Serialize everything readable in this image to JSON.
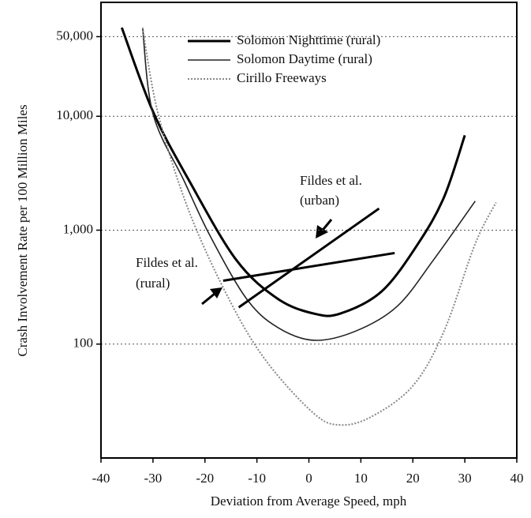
{
  "chart_data": {
    "type": "line",
    "xlabel": "Deviation from Average Speed, mph",
    "ylabel": "Crash Involvement Rate per 100 Million Miles",
    "xlim": [
      -40,
      40
    ],
    "xticks": [
      -40,
      -30,
      -20,
      -10,
      0,
      10,
      20,
      30,
      40
    ],
    "ylim": [
      10,
      100000
    ],
    "yticks": [
      100,
      {
        "value": 1000,
        "label": "1,000"
      },
      {
        "value": 10000,
        "label": "10,000"
      },
      {
        "value": 50000,
        "label": "50,000"
      }
    ],
    "log_y": true,
    "grid": true,
    "legend": "upper right",
    "series": [
      {
        "name": "Solomon Nighttime (rural)",
        "color": "#000000",
        "style": "thick",
        "x": [
          -36,
          -30,
          -23,
          -14,
          -6,
          1,
          6,
          14,
          21,
          26,
          30
        ],
        "values": [
          60000,
          11000,
          2700,
          550,
          250,
          185,
          185,
          290,
          760,
          1950,
          6800
        ]
      },
      {
        "name": "Solomon Daytime (rural)",
        "color": "#222222",
        "style": "thin",
        "x": [
          -32,
          -30,
          -24,
          -19,
          -12,
          -6,
          1,
          9,
          17,
          24,
          32
        ],
        "values": [
          60000,
          10500,
          2700,
          890,
          250,
          140,
          108,
          130,
          215,
          550,
          1800
        ]
      },
      {
        "name": "Cirillo Freeways",
        "color": "#888888",
        "style": "dotted",
        "x": [
          -32,
          -29,
          -23,
          -15,
          -8,
          1,
          6,
          12,
          20,
          26,
          32,
          36
        ],
        "values": [
          60000,
          10500,
          1440,
          230,
          69,
          24.5,
          19.5,
          23,
          43,
          130,
          760,
          1750
        ]
      }
    ],
    "annotations": [
      {
        "text": [
          "Fildes et al.",
          "(urban)"
        ],
        "x": [
          -13.5,
          13.5
        ],
        "values": [
          210,
          1550
        ]
      },
      {
        "text": [
          "Fildes et al.",
          "(rural)"
        ],
        "x": [
          -16.5,
          16.5
        ],
        "values": [
          360,
          630
        ]
      }
    ]
  }
}
